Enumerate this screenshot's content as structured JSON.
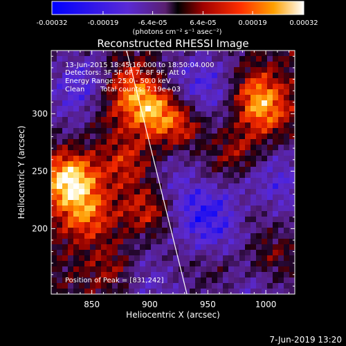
{
  "chart_data": {
    "type": "heatmap",
    "title": "Reconstructed RHESSI Image",
    "xlabel": "Heliocentric X (arcsec)",
    "ylabel": "Heliocentric Y (arcsec)",
    "xlim": [
      815,
      1025
    ],
    "ylim": [
      143,
      355
    ],
    "xticks": [
      850,
      900,
      950,
      1000
    ],
    "yticks": [
      200,
      250,
      300
    ],
    "colorbar": {
      "label": "(photons cm⁻² s⁻¹ asec⁻²)",
      "range": [
        -0.00032,
        0.00032
      ],
      "tick_labels": [
        "-0.00032",
        "-0.00019",
        "-6.4e-05",
        "6.4e-05",
        "0.00019",
        "0.00032"
      ],
      "tick_values": [
        -0.00032,
        -0.00019,
        -6.4e-05,
        6.4e-05,
        0.00019,
        0.00032
      ]
    },
    "info": {
      "time": "13-Jun-2015 18:45:16.000 to 18:50:04.000",
      "detectors": "Detectors: 3F 5F 6F 7F 8F 9F, Att 0",
      "energy": "Energy Range: 25.0 - 50.0 keV",
      "method": "Clean",
      "counts": "Total counts: 7.19e+03"
    },
    "peak_label": "Position of Peak = [831,242]",
    "peak": [
      831,
      242
    ],
    "hot_spots": [
      {
        "x": 831,
        "y": 242,
        "value": 0.00032
      },
      {
        "x": 901,
        "y": 304,
        "value": 0.00026
      },
      {
        "x": 880,
        "y": 325,
        "value": 0.0002
      },
      {
        "x": 928,
        "y": 290,
        "value": 0.00019
      },
      {
        "x": 845,
        "y": 212,
        "value": 0.00018
      },
      {
        "x": 900,
        "y": 215,
        "value": 0.00017
      },
      {
        "x": 990,
        "y": 318,
        "value": 0.00018
      },
      {
        "x": 1000,
        "y": 300,
        "value": 0.00016
      },
      {
        "x": 975,
        "y": 265,
        "value": 0.00014
      },
      {
        "x": 950,
        "y": 245,
        "value": 0.00012
      },
      {
        "x": 880,
        "y": 258,
        "value": 0.00013
      },
      {
        "x": 860,
        "y": 300,
        "value": 0.00012
      },
      {
        "x": 1000,
        "y": 175,
        "value": 0.00013
      },
      {
        "x": 960,
        "y": 165,
        "value": 0.00011
      },
      {
        "x": 870,
        "y": 165,
        "value": 0.00012
      },
      {
        "x": 920,
        "y": 170,
        "value": 0.0001
      },
      {
        "x": 985,
        "y": 215,
        "value": 0.0001
      }
    ],
    "cold_regions": [
      {
        "x": 845,
        "y": 318,
        "value": -0.00022
      },
      {
        "x": 945,
        "y": 322,
        "value": -0.0002
      },
      {
        "x": 955,
        "y": 208,
        "value": -0.00019
      },
      {
        "x": 905,
        "y": 160,
        "value": -0.00018
      },
      {
        "x": 1010,
        "y": 240,
        "value": -0.00017
      },
      {
        "x": 935,
        "y": 242,
        "value": -0.00016
      },
      {
        "x": 985,
        "y": 155,
        "value": -0.00015
      }
    ],
    "limb_line": [
      [
        880,
        355
      ],
      [
        932,
        143
      ]
    ]
  },
  "footer": {
    "date": "7-Jun-2019 13:20"
  }
}
